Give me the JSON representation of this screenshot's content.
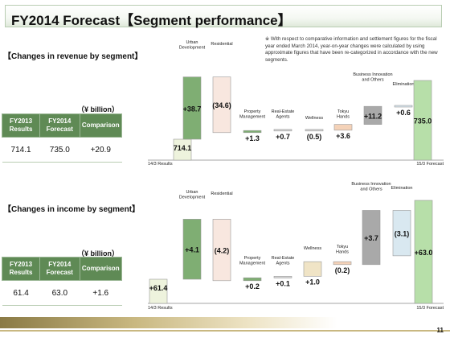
{
  "title": "FY2014 Forecast【Segment performance】",
  "note": "※ With respect to comparative information and settlement figures for the fiscal year ended March 2014, year-on-year changes were calculated by using approximate figures that have been re-categorized in accordance with the new segments.",
  "page_number": "11",
  "revenue": {
    "section_label": "【Changes in revenue by segment】",
    "unit": "（¥ billion）",
    "table": {
      "headers": [
        "FY2013\nResults",
        "FY2014\nForecast",
        "Comparison"
      ],
      "values": [
        "714.1",
        "735.0",
        "+20.9"
      ]
    }
  },
  "income": {
    "section_label": "【Changes in income by segment】",
    "unit": "（¥ billion）",
    "table": {
      "headers": [
        "FY2013\nResults",
        "FY2014\nForecast",
        "Comparison"
      ],
      "values": [
        "61.4",
        "63.0",
        "+1.6"
      ]
    }
  },
  "chart_data": [
    {
      "type": "bar",
      "title": "",
      "categories": [
        "14/3 Results",
        "Urban Development",
        "Residential",
        "Property Management",
        "Real-Estate Agents",
        "Wellness",
        "Tokyu Hands",
        "Business Innovation and Others",
        "Elimination",
        "15/3 Forecast"
      ],
      "values": [
        714.1,
        38.7,
        -34.6,
        1.3,
        0.7,
        -0.5,
        3.6,
        11.2,
        0.6,
        735.0
      ],
      "labels": [
        "714.1",
        "+38.7",
        "(34.6)",
        "+1.3",
        "+0.7",
        "(0.5)",
        "+3.6",
        "+11.2",
        "+0.6",
        "735.0"
      ],
      "kinds": [
        "total",
        "delta",
        "delta",
        "delta",
        "delta",
        "delta",
        "delta",
        "delta",
        "delta",
        "total"
      ],
      "colors": [
        "#eef3dd",
        "#7fae73",
        "#f8e7df",
        "#7fae73",
        "#d6d6d6",
        "#d6d6d6",
        "#f4d2b8",
        "#a9a9a9",
        "#d9e8f0",
        "#b7dfa9"
      ]
    },
    {
      "type": "bar",
      "title": "",
      "categories": [
        "14/3 Results",
        "Urban Development",
        "Residential",
        "Property Management",
        "Real-Estate Agents",
        "Wellness",
        "Tokyu Hands",
        "Business Innovation and Others",
        "Elimination",
        "15/3 Forecast"
      ],
      "values": [
        61.4,
        4.1,
        -4.2,
        0.2,
        0.1,
        1.0,
        -0.2,
        3.7,
        -3.1,
        63.0
      ],
      "labels": [
        "+61.4",
        "+4.1",
        "(4.2)",
        "+0.2",
        "+0.1",
        "+1.0",
        "(0.2)",
        "+3.7",
        "(3.1)",
        "+63.0"
      ],
      "kinds": [
        "total",
        "delta",
        "delta",
        "delta",
        "delta",
        "delta",
        "delta",
        "delta",
        "delta",
        "total"
      ],
      "colors": [
        "#eef3dd",
        "#7fae73",
        "#f8e7df",
        "#7fae73",
        "#d6d6d6",
        "#f0e4c6",
        "#f4d2b8",
        "#a9a9a9",
        "#d9e8f0",
        "#b7dfa9"
      ]
    }
  ]
}
